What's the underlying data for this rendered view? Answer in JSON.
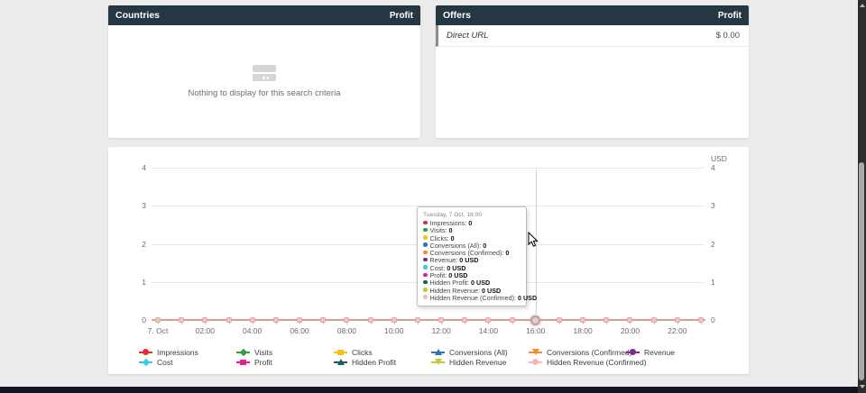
{
  "colors": {
    "header_bg": "#243743",
    "page_bg": "#ececec",
    "flat_line": "#d99e97",
    "flat_marker_fill": "#f4c6c0"
  },
  "countries_panel": {
    "title": "Countries",
    "value_column": "Profit",
    "empty_text": "Nothing to display for this search criteria"
  },
  "offers_panel": {
    "title": "Offers",
    "value_column": "Profit",
    "rows": [
      {
        "name": "Direct URL",
        "profit": "$ 0.00"
      }
    ]
  },
  "chart": {
    "unit_label": "USD",
    "y_ticks": [
      "4",
      "3",
      "2",
      "1",
      "0"
    ],
    "x_tick_labels": [
      "7. Oct",
      "02:00",
      "04:00",
      "06:00",
      "08:00",
      "10:00",
      "12:00",
      "14:00",
      "16:00",
      "18:00",
      "20:00",
      "22:00"
    ],
    "hours_count": 24,
    "hovered_hour_index": 16,
    "tooltip": {
      "title": "Tuesday, 7 Oct, 16:00",
      "rows": [
        {
          "label": "Impressions",
          "value": "0",
          "color": "#e03131"
        },
        {
          "label": "Visits",
          "value": "0",
          "color": "#2f9e44"
        },
        {
          "label": "Clicks",
          "value": "0",
          "color": "#f5c211"
        },
        {
          "label": "Conversions (All)",
          "value": "0",
          "color": "#2878b8"
        },
        {
          "label": "Conversions (Confirmed)",
          "value": "0",
          "color": "#f28c33"
        },
        {
          "label": "Revenue",
          "value": "0 USD",
          "color": "#7b2d8b"
        },
        {
          "label": "Cost",
          "value": "0 USD",
          "color": "#3bc9db"
        },
        {
          "label": "Profit",
          "value": "0 USD",
          "color": "#e91e8c"
        },
        {
          "label": "Hidden Profit",
          "value": "0 USD",
          "color": "#115e63"
        },
        {
          "label": "Hidden Revenue",
          "value": "0 USD",
          "color": "#c0ca33"
        },
        {
          "label": "Hidden Revenue (Confirmed)",
          "value": "0 USD",
          "color": "#f5b7b1"
        }
      ]
    },
    "legend": [
      {
        "label": "Impressions",
        "color": "#e03131",
        "shape": "circle",
        "row": 0,
        "col": 0
      },
      {
        "label": "Visits",
        "color": "#2f9e44",
        "shape": "diamond",
        "row": 0,
        "col": 1
      },
      {
        "label": "Clicks",
        "color": "#f5c211",
        "shape": "square",
        "row": 0,
        "col": 2
      },
      {
        "label": "Conversions (All)",
        "color": "#2878b8",
        "shape": "triangle",
        "row": 0,
        "col": 3
      },
      {
        "label": "Conversions (Confirmed)",
        "color": "#f28c33",
        "shape": "triangle-down",
        "row": 0,
        "col": 4
      },
      {
        "label": "Revenue",
        "color": "#7b2d8b",
        "shape": "circle",
        "row": 0,
        "col": 5
      },
      {
        "label": "Cost",
        "color": "#3bc9db",
        "shape": "diamond",
        "row": 1,
        "col": 0
      },
      {
        "label": "Profit",
        "color": "#e91e8c",
        "shape": "square",
        "row": 1,
        "col": 1
      },
      {
        "label": "Hidden Profit",
        "color": "#115e63",
        "shape": "triangle",
        "row": 1,
        "col": 2
      },
      {
        "label": "Hidden Revenue",
        "color": "#c0ca33",
        "shape": "triangle-down",
        "row": 1,
        "col": 3
      },
      {
        "label": "Hidden Revenue (Confirmed)",
        "color": "#f5b7b1",
        "shape": "circle",
        "row": 1,
        "col": 4
      }
    ]
  },
  "chart_data": {
    "type": "line",
    "title": "",
    "xlabel": "",
    "ylabel": "USD",
    "ylim": [
      0,
      4
    ],
    "grid": true,
    "legend_position": "bottom",
    "x": [
      "00:00",
      "01:00",
      "02:00",
      "03:00",
      "04:00",
      "05:00",
      "06:00",
      "07:00",
      "08:00",
      "09:00",
      "10:00",
      "11:00",
      "12:00",
      "13:00",
      "14:00",
      "15:00",
      "16:00",
      "17:00",
      "18:00",
      "19:00",
      "20:00",
      "21:00",
      "22:00",
      "23:00"
    ],
    "x_date": "7. Oct",
    "series": [
      {
        "name": "Impressions",
        "color": "#e03131",
        "values": [
          0,
          0,
          0,
          0,
          0,
          0,
          0,
          0,
          0,
          0,
          0,
          0,
          0,
          0,
          0,
          0,
          0,
          0,
          0,
          0,
          0,
          0,
          0,
          0
        ]
      },
      {
        "name": "Visits",
        "color": "#2f9e44",
        "values": [
          0,
          0,
          0,
          0,
          0,
          0,
          0,
          0,
          0,
          0,
          0,
          0,
          0,
          0,
          0,
          0,
          0,
          0,
          0,
          0,
          0,
          0,
          0,
          0
        ]
      },
      {
        "name": "Clicks",
        "color": "#f5c211",
        "values": [
          0,
          0,
          0,
          0,
          0,
          0,
          0,
          0,
          0,
          0,
          0,
          0,
          0,
          0,
          0,
          0,
          0,
          0,
          0,
          0,
          0,
          0,
          0,
          0
        ]
      },
      {
        "name": "Conversions (All)",
        "color": "#2878b8",
        "values": [
          0,
          0,
          0,
          0,
          0,
          0,
          0,
          0,
          0,
          0,
          0,
          0,
          0,
          0,
          0,
          0,
          0,
          0,
          0,
          0,
          0,
          0,
          0,
          0
        ]
      },
      {
        "name": "Conversions (Confirmed)",
        "color": "#f28c33",
        "values": [
          0,
          0,
          0,
          0,
          0,
          0,
          0,
          0,
          0,
          0,
          0,
          0,
          0,
          0,
          0,
          0,
          0,
          0,
          0,
          0,
          0,
          0,
          0,
          0
        ]
      },
      {
        "name": "Revenue",
        "color": "#7b2d8b",
        "values": [
          0,
          0,
          0,
          0,
          0,
          0,
          0,
          0,
          0,
          0,
          0,
          0,
          0,
          0,
          0,
          0,
          0,
          0,
          0,
          0,
          0,
          0,
          0,
          0
        ]
      },
      {
        "name": "Cost",
        "color": "#3bc9db",
        "values": [
          0,
          0,
          0,
          0,
          0,
          0,
          0,
          0,
          0,
          0,
          0,
          0,
          0,
          0,
          0,
          0,
          0,
          0,
          0,
          0,
          0,
          0,
          0,
          0
        ]
      },
      {
        "name": "Profit",
        "color": "#e91e8c",
        "values": [
          0,
          0,
          0,
          0,
          0,
          0,
          0,
          0,
          0,
          0,
          0,
          0,
          0,
          0,
          0,
          0,
          0,
          0,
          0,
          0,
          0,
          0,
          0,
          0
        ]
      },
      {
        "name": "Hidden Profit",
        "color": "#115e63",
        "values": [
          0,
          0,
          0,
          0,
          0,
          0,
          0,
          0,
          0,
          0,
          0,
          0,
          0,
          0,
          0,
          0,
          0,
          0,
          0,
          0,
          0,
          0,
          0,
          0
        ]
      },
      {
        "name": "Hidden Revenue",
        "color": "#c0ca33",
        "values": [
          0,
          0,
          0,
          0,
          0,
          0,
          0,
          0,
          0,
          0,
          0,
          0,
          0,
          0,
          0,
          0,
          0,
          0,
          0,
          0,
          0,
          0,
          0,
          0
        ]
      },
      {
        "name": "Hidden Revenue (Confirmed)",
        "color": "#f5b7b1",
        "values": [
          0,
          0,
          0,
          0,
          0,
          0,
          0,
          0,
          0,
          0,
          0,
          0,
          0,
          0,
          0,
          0,
          0,
          0,
          0,
          0,
          0,
          0,
          0,
          0
        ]
      }
    ]
  }
}
